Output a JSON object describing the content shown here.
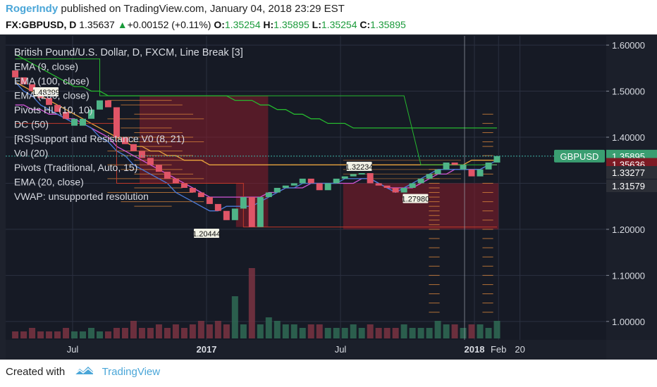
{
  "header": {
    "user": "RogerIndy",
    "published": "published on TradingView.com, January 04, 2018 23:29 EST",
    "symbol": "FX:GBPUSD, D",
    "last": "1.35637",
    "change_arrow": "▲",
    "change": "+0.00152 (+0.11%)",
    "o_label": "O:",
    "o_val": "1.35254",
    "h_label": "H:",
    "h_val": "1.35895",
    "l_label": "L:",
    "l_val": "1.35254",
    "c_label": "C:",
    "c_val": "1.35895"
  },
  "footer": {
    "created": "Created with",
    "brand": "TradingView"
  },
  "colors": {
    "bg": "#161a25",
    "grid": "#2b3040",
    "up": "#4fb488",
    "down": "#e05567",
    "ema9": "#4b7bd8",
    "ema100": "#e6a23c",
    "ema200": "#26b82f",
    "pivot": "#e58c3c",
    "ema20": "#d056d6",
    "sr": "#8b1d2b"
  },
  "legend": [
    "British Pound/U.S. Dollar, D, FXCM, Line Break [3]",
    "EMA (9, close)",
    "EMA (100, close)",
    "EMA (200, close)",
    "Pivots HL (10, 10)",
    "DC (50)",
    "[RS]Support and Resistance V0 (8, 21)",
    "Vol (20)",
    "Pivots (Traditional, Auto, 15)",
    "EMA (20, close)",
    "VWAP: unsupported resolution"
  ],
  "chart_data": {
    "type": "line-break",
    "title": "British Pound/U.S. Dollar, D, FXCM, Line Break [3]",
    "x_ticks": [
      {
        "label": "Jul",
        "t": 0.25
      },
      {
        "label": "2017",
        "t": 0.75
      },
      {
        "label": "Jul",
        "t": 1.25
      },
      {
        "label": "2018",
        "t": 1.75
      },
      {
        "label": "Feb",
        "t": 1.84
      },
      {
        "label": "20",
        "t": 1.92
      }
    ],
    "y_ticks": [
      "1.60000",
      "1.50000",
      "1.40000",
      "1.30000",
      "1.20000",
      "1.10000",
      "1.00000"
    ],
    "ylim": [
      0.96,
      1.62
    ],
    "price_labels": [
      {
        "text": "GBPUSD",
        "value": 1.35895,
        "color": "#3a9e71"
      },
      {
        "text": "1.35895",
        "value": 1.35895,
        "color": "#3a9e71"
      },
      {
        "text": "1.35636",
        "value": 1.35636,
        "color": "#7d1a24"
      },
      {
        "text": "1.33277",
        "value": 1.33277,
        "color": "#2c2f37"
      },
      {
        "text": "1.31579",
        "value": 1.31579,
        "color": "#2c2f37"
      }
    ],
    "pivot_labels": [
      {
        "text": "1.48399",
        "t": 0.15,
        "value": 1.48399
      },
      {
        "text": "1.32234",
        "t": 1.32,
        "value": 1.32234
      },
      {
        "text": "1.27980",
        "t": 1.53,
        "value": 1.2798
      },
      {
        "text": "1.20444",
        "t": 0.75,
        "value": 1.20444
      }
    ],
    "bricks": [
      [
        1.545,
        1.53,
        1
      ],
      [
        1.53,
        1.515,
        1
      ],
      [
        1.515,
        1.5,
        1
      ],
      [
        1.5,
        1.485,
        1
      ],
      [
        1.485,
        1.47,
        1
      ],
      [
        1.47,
        1.455,
        1
      ],
      [
        1.455,
        1.44,
        1
      ],
      [
        1.44,
        1.425,
        0
      ],
      [
        1.425,
        1.44,
        0
      ],
      [
        1.44,
        1.46,
        0
      ],
      [
        1.46,
        1.48,
        0
      ],
      [
        1.48,
        1.465,
        1
      ],
      [
        1.465,
        1.4,
        1
      ],
      [
        1.4,
        1.385,
        1
      ],
      [
        1.385,
        1.37,
        1
      ],
      [
        1.37,
        1.355,
        1
      ],
      [
        1.355,
        1.34,
        1
      ],
      [
        1.34,
        1.325,
        1
      ],
      [
        1.325,
        1.31,
        1
      ],
      [
        1.31,
        1.3,
        1
      ],
      [
        1.3,
        1.29,
        1
      ],
      [
        1.29,
        1.28,
        1
      ],
      [
        1.28,
        1.27,
        1
      ],
      [
        1.27,
        1.255,
        1
      ],
      [
        1.255,
        1.24,
        1
      ],
      [
        1.24,
        1.22,
        1
      ],
      [
        1.22,
        1.245,
        0
      ],
      [
        1.245,
        1.27,
        0
      ],
      [
        1.27,
        1.205,
        1
      ],
      [
        1.205,
        1.27,
        0
      ],
      [
        1.27,
        1.28,
        0
      ],
      [
        1.28,
        1.29,
        0
      ],
      [
        1.29,
        1.295,
        0
      ],
      [
        1.295,
        1.3,
        0
      ],
      [
        1.3,
        1.31,
        0
      ],
      [
        1.31,
        1.3,
        1
      ],
      [
        1.3,
        1.285,
        1
      ],
      [
        1.285,
        1.3,
        0
      ],
      [
        1.3,
        1.31,
        0
      ],
      [
        1.31,
        1.315,
        0
      ],
      [
        1.315,
        1.32,
        0
      ],
      [
        1.32,
        1.322,
        0
      ],
      [
        1.322,
        1.3,
        1
      ],
      [
        1.3,
        1.295,
        1
      ],
      [
        1.295,
        1.29,
        1
      ],
      [
        1.29,
        1.28,
        1
      ],
      [
        1.28,
        1.29,
        0
      ],
      [
        1.29,
        1.3,
        0
      ],
      [
        1.3,
        1.31,
        0
      ],
      [
        1.31,
        1.32,
        0
      ],
      [
        1.32,
        1.33,
        0
      ],
      [
        1.33,
        1.345,
        0
      ],
      [
        1.345,
        1.34,
        1
      ],
      [
        1.34,
        1.33,
        0
      ],
      [
        1.33,
        1.315,
        1
      ],
      [
        1.315,
        1.33,
        0
      ],
      [
        1.33,
        1.345,
        0
      ],
      [
        1.345,
        1.359,
        0
      ]
    ],
    "volume": [
      2,
      2,
      3,
      2,
      2,
      2,
      3,
      2,
      2,
      3,
      2,
      2,
      3,
      3,
      5,
      3,
      3,
      4,
      3,
      4,
      3,
      4,
      5,
      4,
      5,
      4,
      12,
      4,
      20,
      4,
      6,
      5,
      4,
      4,
      3,
      4,
      4,
      3,
      3,
      3,
      4,
      3,
      4,
      3,
      3,
      3,
      4,
      3,
      3,
      3,
      5,
      4,
      4,
      3,
      4,
      4,
      3,
      5
    ],
    "ema9": [
      1.52,
      1.5,
      1.49,
      1.47,
      1.46,
      1.45,
      1.44,
      1.43,
      1.43,
      1.42,
      1.4,
      1.39,
      1.37,
      1.36,
      1.34,
      1.33,
      1.32,
      1.31,
      1.3,
      1.28,
      1.27,
      1.26,
      1.25,
      1.24,
      1.24,
      1.25,
      1.25,
      1.25,
      1.25,
      1.26,
      1.27,
      1.28,
      1.29,
      1.29,
      1.3,
      1.3,
      1.3,
      1.3,
      1.3,
      1.31,
      1.31,
      1.31,
      1.31,
      1.3,
      1.29,
      1.28,
      1.29,
      1.3,
      1.31,
      1.32,
      1.33,
      1.33,
      1.33,
      1.33,
      1.33,
      1.33,
      1.34,
      1.35
    ],
    "ema20": [
      1.47,
      1.47,
      1.46,
      1.46,
      1.45,
      1.45,
      1.44,
      1.44,
      1.43,
      1.42,
      1.41,
      1.4,
      1.38,
      1.37,
      1.36,
      1.35,
      1.34,
      1.33,
      1.32,
      1.31,
      1.3,
      1.29,
      1.28,
      1.27,
      1.27,
      1.27,
      1.27,
      1.27,
      1.27,
      1.27,
      1.28,
      1.28,
      1.29,
      1.29,
      1.29,
      1.3,
      1.3,
      1.3,
      1.3,
      1.3,
      1.3,
      1.31,
      1.31,
      1.3,
      1.29,
      1.29,
      1.29,
      1.29,
      1.3,
      1.31,
      1.32,
      1.32,
      1.33,
      1.33,
      1.33,
      1.33,
      1.34,
      1.34
    ],
    "ema100": [
      1.52,
      1.51,
      1.5,
      1.49,
      1.48,
      1.47,
      1.46,
      1.45,
      1.44,
      1.43,
      1.42,
      1.41,
      1.4,
      1.39,
      1.38,
      1.38,
      1.37,
      1.37,
      1.36,
      1.36,
      1.35,
      1.35,
      1.35,
      1.34,
      1.34,
      1.34,
      1.34,
      1.34,
      1.34,
      1.34,
      1.34,
      1.34,
      1.34,
      1.34,
      1.34,
      1.34,
      1.34,
      1.34,
      1.34,
      1.34,
      1.34,
      1.34,
      1.34,
      1.34,
      1.34,
      1.34,
      1.34,
      1.34,
      1.34,
      1.34,
      1.34,
      1.34,
      1.34,
      1.34,
      1.35,
      1.35,
      1.35,
      1.35
    ],
    "ema200": [
      1.58,
      1.57,
      1.56,
      1.55,
      1.54,
      1.53,
      1.52,
      1.51,
      1.51,
      1.5,
      1.5,
      1.49,
      1.49,
      1.49,
      1.49,
      1.49,
      1.49,
      1.49,
      1.49,
      1.49,
      1.49,
      1.49,
      1.49,
      1.49,
      1.49,
      1.49,
      1.48,
      1.48,
      1.48,
      1.47,
      1.47,
      1.46,
      1.46,
      1.45,
      1.45,
      1.44,
      1.44,
      1.43,
      1.43,
      1.43,
      1.42,
      1.42,
      1.42,
      1.42,
      1.42,
      1.42,
      1.42,
      1.42,
      1.42,
      1.42,
      1.42,
      1.42,
      1.42,
      1.42,
      1.42,
      1.42,
      1.42,
      1.42
    ]
  }
}
